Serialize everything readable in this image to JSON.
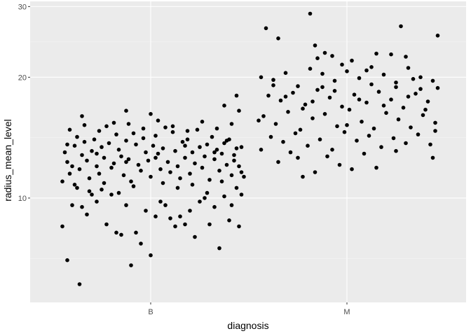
{
  "chart_data": {
    "type": "scatter",
    "title": "",
    "xlabel": "diagnosis",
    "ylabel": "radius_mean_level",
    "x_type": "categorical-jitter",
    "categories": [
      "B",
      "M"
    ],
    "y_scale": "log",
    "y_range_log10": [
      0.74,
      1.49
    ],
    "y_ticks": [
      10,
      20,
      30
    ],
    "y_tick_labels": [
      "10",
      "20",
      "30"
    ],
    "grid": true,
    "legend": "none",
    "point_color": "#000000",
    "series": [
      {
        "category": "B",
        "points": [
          [
            -0.34,
            7.0
          ],
          [
            -0.29,
            6.1
          ],
          [
            -0.36,
            8.5
          ],
          [
            -0.32,
            9.6
          ],
          [
            -0.28,
            9.5
          ],
          [
            -0.26,
            9.1
          ],
          [
            -0.24,
            10.2
          ],
          [
            -0.22,
            9.8
          ],
          [
            -0.18,
            8.6
          ],
          [
            -0.14,
            8.2
          ],
          [
            -0.1,
            9.6
          ],
          [
            -0.06,
            8.2
          ],
          [
            -0.02,
            9.3
          ],
          [
            0.02,
            9.0
          ],
          [
            0.06,
            9.6
          ],
          [
            0.1,
            8.5
          ],
          [
            0.14,
            8.6
          ],
          [
            0.18,
            8.0
          ],
          [
            0.22,
            10.0
          ],
          [
            0.26,
            9.5
          ],
          [
            0.3,
            10.1
          ],
          [
            0.33,
            9.6
          ],
          [
            0.35,
            10.6
          ],
          [
            0.37,
            10.2
          ],
          [
            -0.12,
            8.1
          ],
          [
            -0.08,
            6.8
          ],
          [
            -0.04,
            7.7
          ],
          [
            0.0,
            7.2
          ],
          [
            0.04,
            9.8
          ],
          [
            0.08,
            8.9
          ],
          [
            0.12,
            9.0
          ],
          [
            0.16,
            9.3
          ],
          [
            0.2,
            9.8
          ],
          [
            0.24,
            8.6
          ],
          [
            0.28,
            7.5
          ],
          [
            0.32,
            8.8
          ],
          [
            0.36,
            8.5
          ],
          [
            -0.3,
            10.6
          ],
          [
            -0.2,
            10.5
          ],
          [
            -0.16,
            10.2
          ],
          [
            -0.35,
            13.0
          ],
          [
            -0.34,
            12.3
          ],
          [
            -0.33,
            11.5
          ],
          [
            -0.32,
            12.0
          ],
          [
            -0.31,
            13.5
          ],
          [
            -0.3,
            14.2
          ],
          [
            -0.29,
            11.8
          ],
          [
            -0.28,
            12.8
          ],
          [
            -0.27,
            13.8
          ],
          [
            -0.26,
            12.4
          ],
          [
            -0.25,
            11.2
          ],
          [
            -0.24,
            13.1
          ],
          [
            -0.23,
            14.0
          ],
          [
            -0.22,
            12.0
          ],
          [
            -0.21,
            11.5
          ],
          [
            -0.2,
            13.4
          ],
          [
            -0.19,
            12.6
          ],
          [
            -0.18,
            15.1
          ],
          [
            -0.17,
            13.7
          ],
          [
            -0.16,
            11.9
          ],
          [
            -0.15,
            12.2
          ],
          [
            -0.14,
            14.4
          ],
          [
            -0.13,
            13.2
          ],
          [
            -0.12,
            12.7
          ],
          [
            -0.11,
            11.4
          ],
          [
            -0.1,
            13.9
          ],
          [
            -0.09,
            12.5
          ],
          [
            -0.08,
            11.0
          ],
          [
            -0.07,
            14.5
          ],
          [
            -0.06,
            13.6
          ],
          [
            -0.05,
            12.1
          ],
          [
            -0.04,
            11.7
          ],
          [
            -0.03,
            14.1
          ],
          [
            -0.02,
            13.0
          ],
          [
            -0.01,
            12.4
          ],
          [
            0.0,
            11.3
          ],
          [
            0.01,
            13.5
          ],
          [
            0.02,
            14.3
          ],
          [
            0.03,
            12.9
          ],
          [
            0.04,
            11.8
          ],
          [
            0.05,
            13.3
          ],
          [
            0.06,
            15.0
          ],
          [
            0.07,
            12.3
          ],
          [
            0.08,
            11.6
          ],
          [
            0.09,
            14.6
          ],
          [
            0.1,
            13.1
          ],
          [
            0.11,
            12.0
          ],
          [
            0.12,
            11.2
          ],
          [
            0.13,
            13.8
          ],
          [
            0.14,
            12.6
          ],
          [
            0.15,
            14.0
          ],
          [
            0.16,
            11.5
          ],
          [
            0.17,
            13.0
          ],
          [
            0.18,
            12.2
          ],
          [
            0.19,
            14.8
          ],
          [
            0.2,
            13.4
          ],
          [
            0.21,
            11.9
          ],
          [
            0.22,
            12.7
          ],
          [
            0.23,
            13.6
          ],
          [
            0.24,
            11.1
          ],
          [
            0.25,
            14.2
          ],
          [
            0.26,
            12.5
          ],
          [
            0.27,
            13.2
          ],
          [
            0.28,
            11.7
          ],
          [
            0.29,
            12.9
          ],
          [
            0.3,
            13.7
          ],
          [
            0.31,
            12.1
          ],
          [
            0.32,
            14.0
          ],
          [
            0.33,
            11.4
          ],
          [
            0.34,
            12.8
          ],
          [
            0.35,
            13.3
          ],
          [
            0.36,
            12.0
          ],
          [
            0.37,
            11.6
          ],
          [
            -0.33,
            14.8
          ],
          [
            -0.27,
            15.2
          ],
          [
            -0.21,
            14.7
          ],
          [
            -0.15,
            15.4
          ],
          [
            -0.09,
            15.3
          ],
          [
            -0.03,
            14.9
          ],
          [
            0.03,
            15.6
          ],
          [
            0.09,
            15.1
          ],
          [
            0.15,
            14.7
          ],
          [
            0.21,
            15.5
          ],
          [
            0.27,
            14.9
          ],
          [
            0.33,
            15.3
          ],
          [
            -0.28,
            16.0
          ],
          [
            0.0,
            16.2
          ],
          [
            0.3,
            17.0
          ],
          [
            0.36,
            16.5
          ],
          [
            0.35,
            18.0
          ],
          [
            -0.1,
            16.5
          ],
          [
            -0.36,
            11.0
          ],
          [
            -0.31,
            10.8
          ],
          [
            -0.19,
            10.9
          ],
          [
            -0.07,
            10.7
          ],
          [
            0.05,
            10.9
          ],
          [
            0.17,
            10.8
          ],
          [
            0.29,
            11.0
          ],
          [
            -0.25,
            10.4
          ],
          [
            0.11,
            10.6
          ],
          [
            -0.13,
            10.3
          ],
          [
            0.23,
            10.3
          ],
          [
            0.34,
            12.4
          ],
          [
            0.31,
            13.9
          ],
          [
            -0.34,
            13.6
          ],
          [
            -0.22,
            12.9
          ],
          [
            -0.1,
            12.3
          ],
          [
            0.02,
            12.6
          ],
          [
            0.14,
            13.5
          ],
          [
            0.26,
            13.0
          ],
          [
            0.38,
            11.3
          ],
          [
            0.37,
            13.4
          ]
        ]
      },
      {
        "category": "M",
        "points": [
          [
            -0.33,
            26.5
          ],
          [
            -0.28,
            25.0
          ],
          [
            -0.15,
            28.8
          ],
          [
            -0.13,
            24.0
          ],
          [
            0.22,
            26.8
          ],
          [
            0.37,
            25.4
          ],
          [
            -0.35,
            20.0
          ],
          [
            -0.3,
            19.7
          ],
          [
            -0.25,
            20.5
          ],
          [
            -0.2,
            19.0
          ],
          [
            -0.15,
            21.0
          ],
          [
            -0.1,
            20.4
          ],
          [
            -0.05,
            19.6
          ],
          [
            0.0,
            20.7
          ],
          [
            0.05,
            19.9
          ],
          [
            0.1,
            21.2
          ],
          [
            0.15,
            20.3
          ],
          [
            0.2,
            19.4
          ],
          [
            0.25,
            21.1
          ],
          [
            0.3,
            20.0
          ],
          [
            0.35,
            19.6
          ],
          [
            -0.12,
            22.3
          ],
          [
            -0.09,
            23.0
          ],
          [
            0.02,
            22.0
          ],
          [
            0.18,
            22.8
          ],
          [
            0.24,
            22.5
          ],
          [
            -0.06,
            22.6
          ],
          [
            0.12,
            22.9
          ],
          [
            -0.32,
            18.0
          ],
          [
            -0.27,
            17.5
          ],
          [
            -0.22,
            18.3
          ],
          [
            -0.17,
            17.1
          ],
          [
            -0.12,
            18.6
          ],
          [
            -0.07,
            17.8
          ],
          [
            -0.02,
            16.9
          ],
          [
            0.03,
            18.1
          ],
          [
            0.08,
            17.3
          ],
          [
            0.13,
            18.4
          ],
          [
            0.18,
            17.6
          ],
          [
            0.23,
            16.8
          ],
          [
            0.28,
            18.2
          ],
          [
            0.33,
            17.4
          ],
          [
            0.37,
            18.8
          ],
          [
            -0.34,
            16.0
          ],
          [
            -0.29,
            15.3
          ],
          [
            -0.24,
            16.4
          ],
          [
            -0.19,
            14.8
          ],
          [
            -0.14,
            15.8
          ],
          [
            -0.09,
            16.2
          ],
          [
            -0.04,
            15.1
          ],
          [
            0.01,
            16.6
          ],
          [
            0.06,
            15.5
          ],
          [
            0.11,
            14.9
          ],
          [
            0.16,
            16.3
          ],
          [
            0.21,
            15.7
          ],
          [
            0.26,
            15.0
          ],
          [
            0.31,
            16.1
          ],
          [
            0.36,
            15.4
          ],
          [
            -0.31,
            14.2
          ],
          [
            -0.26,
            13.8
          ],
          [
            -0.21,
            14.5
          ],
          [
            -0.16,
            13.5
          ],
          [
            -0.11,
            14.0
          ],
          [
            -0.06,
            13.2
          ],
          [
            -0.01,
            14.6
          ],
          [
            0.04,
            13.9
          ],
          [
            0.09,
            14.3
          ],
          [
            0.14,
            13.4
          ],
          [
            0.19,
            14.1
          ],
          [
            0.24,
            13.7
          ],
          [
            0.29,
            14.4
          ],
          [
            0.34,
            13.6
          ],
          [
            -0.35,
            13.2
          ],
          [
            -0.23,
            13.0
          ],
          [
            -0.08,
            12.7
          ],
          [
            0.07,
            12.9
          ],
          [
            0.2,
            13.1
          ],
          [
            0.35,
            12.6
          ],
          [
            -0.28,
            12.3
          ],
          [
            -0.18,
            11.3
          ],
          [
            -0.13,
            11.6
          ],
          [
            -0.03,
            12.1
          ],
          [
            0.12,
            11.9
          ],
          [
            -0.2,
            12.6
          ],
          [
            0.02,
            11.8
          ],
          [
            -0.3,
            19.1
          ],
          [
            -0.1,
            18.9
          ],
          [
            0.1,
            19.2
          ],
          [
            0.3,
            18.7
          ],
          [
            -0.25,
            17.9
          ],
          [
            0.05,
            17.6
          ],
          [
            0.27,
            19.8
          ],
          [
            -0.18,
            16.7
          ],
          [
            0.15,
            17.0
          ],
          [
            0.32,
            16.6
          ],
          [
            -0.05,
            18.5
          ],
          [
            0.2,
            18.9
          ],
          [
            -0.36,
            15.6
          ],
          [
            0.0,
            15.2
          ],
          [
            0.36,
            14.7
          ],
          [
            0.08,
            20.8
          ],
          [
            -0.14,
            17.4
          ],
          [
            0.25,
            17.9
          ],
          [
            -0.02,
            21.5
          ]
        ]
      }
    ]
  }
}
